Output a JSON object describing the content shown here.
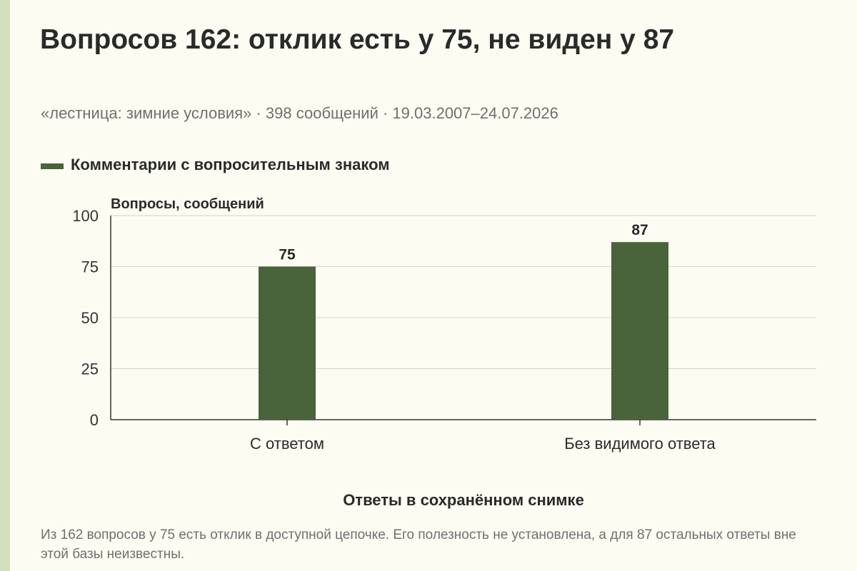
{
  "title": "Вопросов 162: отклик есть у 75, не виден у 87",
  "subtitle": "«лестница: зимние условия» · 398 сообщений · 19.03.2007–24.07.2026",
  "caption": "Из 162 вопросов у 75 есть отклик в доступной цепочке. Его полезность не установлена, а для 87 остальных ответы вне этой базы неизвестны.",
  "colors": {
    "bar": "#49633a",
    "accent": "#d4e0bd",
    "background": "#fdfcf3"
  },
  "chart_data": {
    "type": "bar",
    "categories": [
      "С ответом",
      "Без видимого ответа"
    ],
    "series": [
      {
        "name": "Комментарии с вопросительным знаком",
        "values": [
          75,
          87
        ]
      }
    ],
    "data_labels": [
      "75",
      "87"
    ],
    "xlabel": "Ответы в сохранённом снимке",
    "ylabel": "Вопросы, сообщений",
    "ylim": [
      0,
      100
    ],
    "yticks": [
      0,
      25,
      50,
      75,
      100
    ],
    "grid": true,
    "legend": "top-left"
  }
}
